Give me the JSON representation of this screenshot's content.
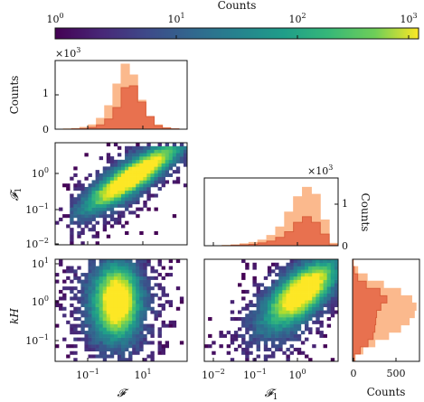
{
  "chart_data": {
    "type": "heatmap",
    "colorbar": {
      "label": "Counts",
      "scale": "log",
      "range": [
        1,
        1000
      ],
      "ticks": [
        "10^0",
        "10^1",
        "10^2",
        "10^3"
      ],
      "colormap": "viridis"
    },
    "colors": {
      "hist_light": "#fbb98d",
      "hist_dark": "#e8714f",
      "hist_dark_edge": "#d95f3b"
    },
    "panels": {
      "hist_F": {
        "ylabel": "Counts",
        "multiplier": "×10^3",
        "yticks": [
          "0",
          "1"
        ],
        "ylim": [
          0,
          1.9
        ],
        "x_log10": [
          -2,
          -1.8,
          -1.6,
          -1.4,
          -1.2,
          -1.0,
          -0.8,
          -0.6,
          -0.4,
          -0.2,
          0.0,
          0.2,
          0.4,
          0.6,
          0.8,
          1.0
        ],
        "series": [
          {
            "values": [
              0.0,
              0.01,
              0.02,
              0.05,
              0.12,
              0.3,
              0.65,
              1.25,
              1.8,
              1.5,
              0.8,
              0.35,
              0.12,
              0.04,
              0.01,
              0.0
            ]
          },
          {
            "values": [
              0.0,
              0.0,
              0.01,
              0.02,
              0.05,
              0.12,
              0.28,
              0.6,
              1.15,
              1.2,
              0.75,
              0.35,
              0.1,
              0.03,
              0.01,
              0.0
            ]
          }
        ]
      },
      "hist_F1": {
        "ylabel": "Counts",
        "multiplier": "×10^3",
        "yticks": [
          "0",
          "1"
        ],
        "ylim": [
          0,
          1.45
        ],
        "x_log10": [
          -2,
          -1.8,
          -1.6,
          -1.4,
          -1.2,
          -1.0,
          -0.8,
          -0.6,
          -0.4,
          -0.2,
          0.0,
          0.2,
          0.4,
          0.6,
          0.8
        ],
        "series": [
          {
            "values": [
              0.0,
              0.0,
              0.01,
              0.02,
              0.04,
              0.07,
              0.12,
              0.22,
              0.4,
              0.72,
              1.05,
              1.25,
              1.1,
              0.55,
              0.05
            ]
          },
          {
            "values": [
              0.0,
              0.0,
              0.0,
              0.01,
              0.02,
              0.03,
              0.06,
              0.1,
              0.18,
              0.3,
              0.5,
              0.62,
              0.5,
              0.25,
              0.02
            ]
          }
        ]
      },
      "hist_kH": {
        "xlabel": "Counts",
        "xticks": [
          "0",
          "500"
        ],
        "xlim": [
          0,
          780
        ],
        "y_log10": [
          -1.6,
          -1.4,
          -1.2,
          -1.0,
          -0.8,
          -0.6,
          -0.4,
          -0.2,
          0.0,
          0.2,
          0.4,
          0.6,
          0.8,
          1.0
        ],
        "series": [
          {
            "values": [
              30,
              120,
              260,
              420,
              560,
              660,
              720,
              740,
              690,
              560,
              360,
              170,
              60,
              10
            ]
          },
          {
            "values": [
              20,
              90,
              180,
              240,
              260,
              270,
              280,
              330,
              400,
              320,
              160,
              60,
              20,
              5
            ]
          }
        ]
      },
      "F1_vs_F": {
        "xlabel": "",
        "ylabel": "F1",
        "ylim_log10": [
          -2.05,
          0.8
        ],
        "yticks": [
          "10^-2",
          "10^-1",
          "10^0"
        ]
      },
      "kH_vs_F": {
        "xlabel": "F",
        "ylabel": "kH",
        "xlim_log10": [
          -2.5,
          1.5
        ],
        "ylim_log10": [
          -1.5,
          1.05
        ],
        "xticks": [
          "10^-1",
          "10^1"
        ],
        "yticks": [
          "10^-1",
          "10^0",
          "10^1"
        ]
      },
      "kH_vs_F1": {
        "xlabel": "F1",
        "xlim_log10": [
          -2.2,
          0.7
        ],
        "xticks": [
          "10^-2",
          "10^-1",
          "10^0"
        ]
      }
    }
  }
}
